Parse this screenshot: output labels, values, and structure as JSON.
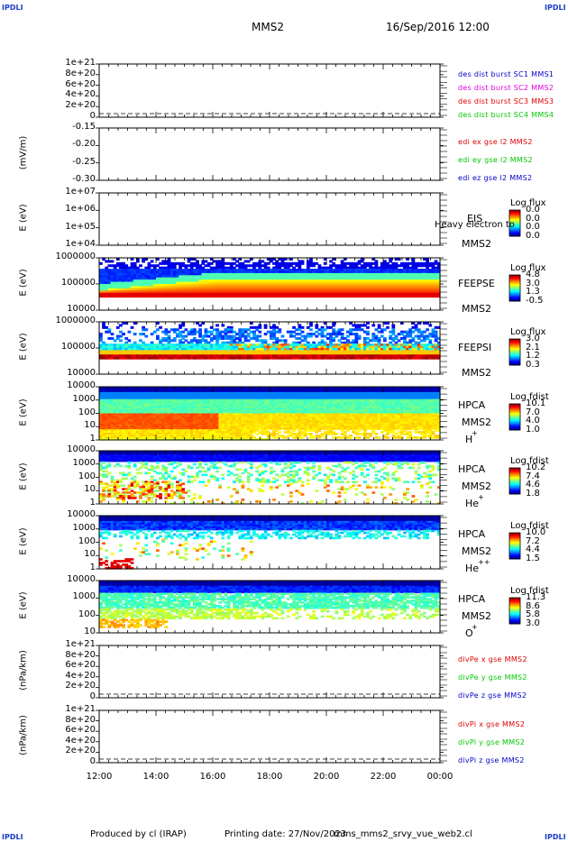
{
  "header": {
    "corner_label": "IPDLI",
    "spacecraft": "MMS2",
    "date": "16/Sep/2016 12:00"
  },
  "footer": {
    "produced_by": "Produced by cl (IRAP)",
    "printing_date": "Printing date: 27/Nov/2023",
    "filename": "mms_mms2_srvy_vue_web2.cl"
  },
  "colors": {
    "red": "#e00000",
    "magenta": "#e000e0",
    "green": "#00c800",
    "blue": "#0000c8"
  },
  "chart_data": [
    {
      "type": "line",
      "panel": "des-dist-burst",
      "ylabel": "",
      "yticks": [
        "1e+21",
        "8e+20",
        "6e+20",
        "4e+20",
        "2e+20",
        "0"
      ],
      "series": [
        {
          "name": "des dist burst SC1 MMS1",
          "color": "#0000c8"
        },
        {
          "name": "des dist burst SC2 MMS2",
          "color": "#e000e0"
        },
        {
          "name": "des dist burst SC3 MMS3",
          "color": "#e00000"
        },
        {
          "name": "des dist burst SC4 MMS4",
          "color": "#00c800"
        }
      ]
    },
    {
      "type": "line",
      "panel": "edi-e-field",
      "ylabel": "(mV/m)",
      "yticks": [
        "-0.15",
        "-0.20",
        "-0.25",
        "-0.30"
      ],
      "series": [
        {
          "name": "edi ex gse l2 MMS2",
          "color": "#e00000"
        },
        {
          "name": "edi ey gse l2 MMS2",
          "color": "#00c800"
        },
        {
          "name": "edi ez gse l2 MMS2",
          "color": "#0000c8"
        }
      ]
    },
    {
      "type": "heatmap",
      "panel": "eis",
      "ylabel": "E (eV)",
      "yticks": [
        "1e+07",
        "1e+06",
        "1e+05",
        "1e+04"
      ],
      "instrument": "EIS",
      "species": "Heavy electron to",
      "spacecraft": "MMS2",
      "colorbar": {
        "title": "Log flux",
        "ticks": [
          "0.0",
          "0.0",
          "0.0",
          "0.0"
        ]
      }
    },
    {
      "type": "heatmap",
      "panel": "feeps-e",
      "ylabel": "E (eV)",
      "yticks": [
        "1000000",
        "100000",
        "10000"
      ],
      "instrument": "FEEPSE",
      "spacecraft": "MMS2",
      "colorbar": {
        "title": "Log flux",
        "ticks": [
          "4.8",
          "3.0",
          "1.3",
          "-0.5"
        ]
      }
    },
    {
      "type": "heatmap",
      "panel": "feeps-i",
      "ylabel": "E (eV)",
      "yticks": [
        "1000000",
        "100000",
        "10000"
      ],
      "instrument": "FEEPSI",
      "spacecraft": "MMS2",
      "colorbar": {
        "title": "Log flux",
        "ticks": [
          "3.0",
          "2.1",
          "1.2",
          "0.3"
        ]
      }
    },
    {
      "type": "heatmap",
      "panel": "hpca-h",
      "ylabel": "E (eV)",
      "yticks": [
        "10000",
        "1000",
        "100",
        "10",
        "1"
      ],
      "instrument": "HPCA",
      "spacecraft": "MMS2",
      "ion": "H",
      "ion_sup": "+",
      "colorbar": {
        "title": "Log fdist",
        "ticks": [
          "10.1",
          "7.0",
          "4.0",
          "1.0"
        ]
      }
    },
    {
      "type": "heatmap",
      "panel": "hpca-he1",
      "ylabel": "E (eV)",
      "yticks": [
        "10000",
        "1000",
        "100",
        "10",
        "1"
      ],
      "instrument": "HPCA",
      "spacecraft": "MMS2",
      "ion": "He",
      "ion_sup": "+",
      "colorbar": {
        "title": "Log fdist",
        "ticks": [
          "10.2",
          "7.4",
          "4.6",
          "1.8"
        ]
      }
    },
    {
      "type": "heatmap",
      "panel": "hpca-he2",
      "ylabel": "E (eV)",
      "yticks": [
        "10000",
        "1000",
        "100",
        "10",
        "1"
      ],
      "instrument": "HPCA",
      "spacecraft": "MMS2",
      "ion": "He",
      "ion_sup": "++",
      "colorbar": {
        "title": "Log fdist",
        "ticks": [
          "10.0",
          "7.2",
          "4.4",
          "1.5"
        ]
      }
    },
    {
      "type": "heatmap",
      "panel": "hpca-o",
      "ylabel": "E (eV)",
      "yticks": [
        "10000",
        "1000",
        "100",
        "10"
      ],
      "instrument": "HPCA",
      "spacecraft": "MMS2",
      "ion": "O",
      "ion_sup": "+",
      "colorbar": {
        "title": "Log fdist",
        "ticks": [
          "11.3",
          "8.6",
          "5.8",
          "3.0"
        ]
      }
    },
    {
      "type": "line",
      "panel": "divpe",
      "ylabel": "(nPa/km)",
      "yticks": [
        "1e+21",
        "8e+20",
        "6e+20",
        "4e+20",
        "2e+20",
        "0"
      ],
      "series": [
        {
          "name": "divPe x gse MMS2",
          "color": "#e00000"
        },
        {
          "name": "divPe y gse MMS2",
          "color": "#00c800"
        },
        {
          "name": "divPe z gse MMS2",
          "color": "#0000c8"
        }
      ]
    },
    {
      "type": "line",
      "panel": "divpi",
      "ylabel": "(nPa/km)",
      "yticks": [
        "1e+21",
        "8e+20",
        "6e+20",
        "4e+20",
        "2e+20",
        "0"
      ],
      "series": [
        {
          "name": "divPi x gse MMS2",
          "color": "#e00000"
        },
        {
          "name": "divPi y gse MMS2",
          "color": "#00c800"
        },
        {
          "name": "divPi z gse MMS2",
          "color": "#0000c8"
        }
      ]
    }
  ],
  "x_axis": {
    "ticks": [
      "12:00",
      "14:00",
      "16:00",
      "18:00",
      "20:00",
      "22:00",
      "00:00"
    ]
  }
}
